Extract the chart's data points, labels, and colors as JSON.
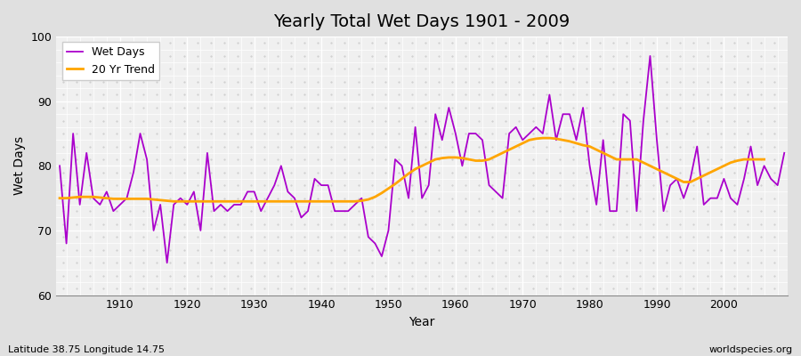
{
  "title": "Yearly Total Wet Days 1901 - 2009",
  "xlabel": "Year",
  "ylabel": "Wet Days",
  "ylim": [
    60,
    100
  ],
  "yticks": [
    60,
    70,
    80,
    90,
    100
  ],
  "footnote_left": "Latitude 38.75 Longitude 14.75",
  "footnote_right": "worldspecies.org",
  "wet_days_color": "#aa00cc",
  "trend_color": "#FFA500",
  "bg_color": "#e0e0e0",
  "plot_bg_color": "#f0f0f0",
  "wet_days": [
    80,
    68,
    85,
    74,
    82,
    75,
    74,
    76,
    73,
    74,
    75,
    79,
    85,
    81,
    70,
    74,
    65,
    74,
    75,
    74,
    76,
    70,
    82,
    73,
    74,
    73,
    74,
    74,
    76,
    76,
    73,
    75,
    77,
    80,
    76,
    75,
    72,
    73,
    78,
    77,
    77,
    73,
    73,
    73,
    74,
    75,
    69,
    68,
    66,
    70,
    81,
    80,
    75,
    86,
    75,
    77,
    88,
    84,
    89,
    85,
    80,
    85,
    85,
    84,
    77,
    76,
    75,
    85,
    86,
    84,
    85,
    86,
    85,
    91,
    84,
    88,
    88,
    84,
    89,
    80,
    74,
    84,
    73,
    73,
    88,
    87,
    73,
    87,
    97,
    84,
    73,
    77,
    78,
    75,
    78,
    83,
    74,
    75,
    75,
    78,
    75,
    74,
    78,
    83,
    77,
    80,
    78,
    77,
    82
  ],
  "trend": [
    75.0,
    75.0,
    75.1,
    75.2,
    75.2,
    75.2,
    75.1,
    75.0,
    74.9,
    74.9,
    74.9,
    74.9,
    74.9,
    74.9,
    74.8,
    74.7,
    74.6,
    74.5,
    74.5,
    74.5,
    74.5,
    74.5,
    74.5,
    74.5,
    74.5,
    74.5,
    74.5,
    74.5,
    74.5,
    74.5,
    74.5,
    74.5,
    74.5,
    74.5,
    74.5,
    74.5,
    74.5,
    74.5,
    74.5,
    74.5,
    74.5,
    74.5,
    74.5,
    74.5,
    74.5,
    74.6,
    74.8,
    75.2,
    75.8,
    76.5,
    77.2,
    78.0,
    78.8,
    79.5,
    80.0,
    80.5,
    81.0,
    81.2,
    81.3,
    81.3,
    81.2,
    81.0,
    80.8,
    80.8,
    81.0,
    81.5,
    82.0,
    82.5,
    83.0,
    83.5,
    84.0,
    84.2,
    84.3,
    84.3,
    84.2,
    84.0,
    83.8,
    83.5,
    83.2,
    83.0,
    82.5,
    82.0,
    81.5,
    81.0,
    81.0,
    81.0,
    81.0,
    80.5,
    80.0,
    79.5,
    79.0,
    78.5,
    78.0,
    77.5,
    77.5,
    78.0,
    78.5,
    79.0,
    79.5,
    80.0,
    80.5,
    80.8,
    81.0,
    81.0,
    81.0,
    81.0,
    null,
    null,
    null
  ],
  "start_year": 1901,
  "xticks": [
    1910,
    1920,
    1930,
    1940,
    1950,
    1960,
    1970,
    1980,
    1990,
    2000
  ]
}
